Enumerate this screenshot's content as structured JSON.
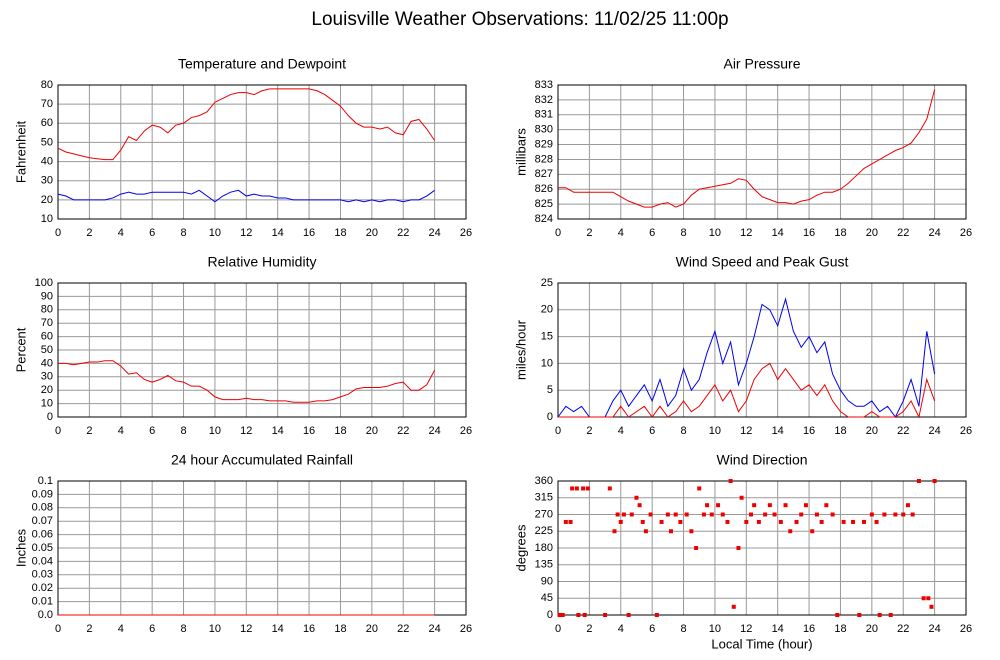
{
  "title": "Louisville Weather Observations: 11/02/25 11:00p",
  "chart_data": [
    {
      "type": "line",
      "title": "Temperature and Dewpoint",
      "ylabel": "Fahrenheit",
      "x": [
        0,
        0.5,
        1,
        1.5,
        2,
        2.5,
        3,
        3.5,
        4,
        4.5,
        5,
        5.5,
        6,
        6.5,
        7,
        7.5,
        8,
        8.5,
        9,
        9.5,
        10,
        10.5,
        11,
        11.5,
        12,
        12.5,
        13,
        13.5,
        14,
        14.5,
        15,
        15.5,
        16,
        16.5,
        17,
        17.5,
        18,
        18.5,
        19,
        19.5,
        20,
        20.5,
        21,
        21.5,
        22,
        22.5,
        23,
        23.5,
        24
      ],
      "series": [
        {
          "color": "#ee0000",
          "values": [
            47,
            45,
            44,
            43,
            42,
            41.5,
            41,
            41,
            46,
            53,
            51,
            56,
            59,
            58,
            55,
            59,
            60,
            63,
            64,
            66,
            71,
            73,
            75,
            76,
            76,
            75,
            77,
            78,
            78,
            78,
            78,
            78,
            78,
            77,
            75,
            72,
            69,
            64,
            60,
            58,
            58,
            57,
            58,
            55,
            54,
            61,
            62,
            57,
            51
          ]
        },
        {
          "color": "#0000ee",
          "values": [
            23,
            22,
            20,
            20,
            20,
            20,
            20,
            21,
            23,
            24,
            23,
            23,
            24,
            24,
            24,
            24,
            24,
            23,
            25,
            22,
            19,
            22,
            24,
            25,
            22,
            23,
            22,
            22,
            21,
            21,
            20,
            20,
            20,
            20,
            20,
            20,
            20,
            19,
            20,
            19,
            20,
            19,
            20,
            20,
            19,
            20,
            20,
            22,
            25
          ]
        }
      ],
      "xlim": [
        0,
        26
      ],
      "xticks": [
        0,
        2,
        4,
        6,
        8,
        10,
        12,
        14,
        16,
        18,
        20,
        22,
        24,
        26
      ],
      "ylim": [
        10,
        80
      ],
      "yticks": [
        10,
        20,
        30,
        40,
        50,
        60,
        70,
        80
      ],
      "grid": true
    },
    {
      "type": "line",
      "title": "Air Pressure",
      "ylabel": "millibars",
      "x": [
        0,
        0.5,
        1,
        1.5,
        2,
        2.5,
        3,
        3.5,
        4,
        4.5,
        5,
        5.5,
        6,
        6.5,
        7,
        7.5,
        8,
        8.5,
        9,
        9.5,
        10,
        10.5,
        11,
        11.5,
        12,
        12.5,
        13,
        13.5,
        14,
        14.5,
        15,
        15.5,
        16,
        16.5,
        17,
        17.5,
        18,
        18.5,
        19,
        19.5,
        20,
        20.5,
        21,
        21.5,
        22,
        22.5,
        23,
        23.5,
        24
      ],
      "series": [
        {
          "color": "#ee0000",
          "values": [
            826.1,
            826.1,
            825.8,
            825.8,
            825.8,
            825.8,
            825.8,
            825.8,
            825.5,
            825.2,
            825.0,
            824.8,
            824.8,
            825.0,
            825.1,
            824.8,
            825.0,
            825.6,
            826.0,
            826.1,
            826.2,
            826.3,
            826.4,
            826.7,
            826.6,
            826.0,
            825.5,
            825.3,
            825.1,
            825.1,
            825.0,
            825.2,
            825.3,
            825.6,
            825.8,
            825.8,
            826.0,
            826.4,
            826.9,
            827.4,
            827.7,
            828.0,
            828.3,
            828.6,
            828.8,
            829.1,
            829.8,
            830.7,
            832.7
          ]
        }
      ],
      "xlim": [
        0,
        26
      ],
      "xticks": [
        0,
        2,
        4,
        6,
        8,
        10,
        12,
        14,
        16,
        18,
        20,
        22,
        24,
        26
      ],
      "ylim": [
        824,
        833
      ],
      "yticks": [
        824,
        825,
        826,
        827,
        828,
        829,
        830,
        831,
        832,
        833
      ],
      "grid": true
    },
    {
      "type": "line",
      "title": "Relative Humidity",
      "ylabel": "Percent",
      "x": [
        0,
        0.5,
        1,
        1.5,
        2,
        2.5,
        3,
        3.5,
        4,
        4.5,
        5,
        5.5,
        6,
        6.5,
        7,
        7.5,
        8,
        8.5,
        9,
        9.5,
        10,
        10.5,
        11,
        11.5,
        12,
        12.5,
        13,
        13.5,
        14,
        14.5,
        15,
        15.5,
        16,
        16.5,
        17,
        17.5,
        18,
        18.5,
        19,
        19.5,
        20,
        20.5,
        21,
        21.5,
        22,
        22.5,
        23,
        23.5,
        24
      ],
      "series": [
        {
          "color": "#ee0000",
          "values": [
            40,
            40,
            39,
            40,
            41,
            41,
            42,
            42,
            38,
            32,
            33,
            28,
            26,
            28,
            31,
            27,
            26,
            23,
            23,
            20,
            15,
            13,
            13,
            13,
            14,
            13,
            13,
            12,
            12,
            12,
            11,
            11,
            11,
            12,
            12,
            13,
            15,
            17,
            21,
            22,
            22,
            22,
            23,
            25,
            26,
            20,
            20,
            24,
            35
          ]
        }
      ],
      "xlim": [
        0,
        26
      ],
      "xticks": [
        0,
        2,
        4,
        6,
        8,
        10,
        12,
        14,
        16,
        18,
        20,
        22,
        24,
        26
      ],
      "ylim": [
        0,
        100
      ],
      "yticks": [
        0,
        10,
        20,
        30,
        40,
        50,
        60,
        70,
        80,
        90,
        100
      ],
      "grid": true
    },
    {
      "type": "line",
      "title": "Wind Speed and Peak Gust",
      "ylabel": "miles/hour",
      "x": [
        0,
        0.5,
        1,
        1.5,
        2,
        2.5,
        3,
        3.5,
        4,
        4.5,
        5,
        5.5,
        6,
        6.5,
        7,
        7.5,
        8,
        8.5,
        9,
        9.5,
        10,
        10.5,
        11,
        11.5,
        12,
        12.5,
        13,
        13.5,
        14,
        14.5,
        15,
        15.5,
        16,
        16.5,
        17,
        17.5,
        18,
        18.5,
        19,
        19.5,
        20,
        20.5,
        21,
        21.5,
        22,
        22.5,
        23,
        23.5,
        24
      ],
      "series": [
        {
          "color": "#0000ee",
          "values": [
            0,
            2,
            1,
            2,
            0,
            0,
            0,
            3,
            5,
            2,
            4,
            6,
            3,
            7,
            2,
            4,
            9,
            5,
            7,
            12,
            16,
            10,
            14,
            6,
            10,
            15,
            21,
            20,
            17,
            22,
            16,
            13,
            15,
            12,
            14,
            8,
            5,
            3,
            2,
            2,
            3,
            1,
            2,
            0,
            3,
            7,
            2,
            16,
            8
          ]
        },
        {
          "color": "#ee0000",
          "values": [
            0,
            0,
            0,
            0,
            0,
            0,
            0,
            0,
            2,
            0,
            1,
            2,
            0,
            2,
            0,
            1,
            3,
            1,
            2,
            4,
            6,
            3,
            5,
            1,
            3,
            7,
            9,
            10,
            7,
            9,
            7,
            5,
            6,
            4,
            6,
            3,
            1,
            0,
            0,
            0,
            1,
            0,
            0,
            0,
            1,
            3,
            0,
            7,
            3
          ]
        }
      ],
      "xlim": [
        0,
        26
      ],
      "xticks": [
        0,
        2,
        4,
        6,
        8,
        10,
        12,
        14,
        16,
        18,
        20,
        22,
        24,
        26
      ],
      "ylim": [
        0,
        25
      ],
      "yticks": [
        0,
        5,
        10,
        15,
        20,
        25
      ],
      "grid": true
    },
    {
      "type": "line",
      "title": "24 hour Accumulated Rainfall",
      "ylabel": "Inches",
      "x": [
        0,
        24
      ],
      "series": [
        {
          "color": "#ee0000",
          "values": [
            0,
            0
          ]
        }
      ],
      "xlim": [
        0,
        26
      ],
      "xticks": [
        0,
        2,
        4,
        6,
        8,
        10,
        12,
        14,
        16,
        18,
        20,
        22,
        24,
        26
      ],
      "ylim": [
        0,
        0.1
      ],
      "yticks": [
        {
          "value": 0,
          "label": "0.0"
        },
        0.01,
        0.02,
        0.03,
        0.04,
        0.05,
        0.06,
        0.07,
        0.08,
        0.09,
        0.1
      ],
      "grid": true
    },
    {
      "type": "scatter",
      "title": "Wind Direction",
      "ylabel": "degrees",
      "xlabel": "Local Time (hour)",
      "x": [
        0.1,
        0.3,
        0.5,
        0.8,
        0.9,
        1.2,
        1.6,
        1.9,
        1.3,
        1.7,
        3.0,
        3.3,
        3.6,
        3.8,
        4.0,
        4.2,
        4.5,
        4.7,
        5.0,
        5.2,
        5.4,
        5.6,
        5.9,
        6.3,
        6.6,
        7.0,
        7.2,
        7.5,
        7.8,
        8.2,
        8.5,
        8.8,
        9.0,
        9.3,
        9.5,
        9.8,
        10.2,
        10.5,
        10.8,
        11.0,
        11.2,
        11.5,
        11.7,
        12.0,
        12.3,
        12.5,
        12.8,
        13.2,
        13.5,
        13.8,
        14.2,
        14.5,
        14.8,
        15.2,
        15.5,
        15.8,
        16.2,
        16.5,
        16.8,
        17.1,
        17.5,
        17.8,
        18.2,
        18.8,
        19.2,
        19.5,
        20.0,
        20.3,
        20.5,
        20.8,
        21.2,
        21.5,
        22.0,
        22.3,
        22.6,
        23.0,
        23.3,
        23.6,
        23.8,
        24.0
      ],
      "series": [
        {
          "color": "#ee0000",
          "values": [
            0,
            0,
            250,
            250,
            340,
            340,
            340,
            340,
            0,
            0,
            0,
            340,
            225,
            270,
            250,
            270,
            0,
            270,
            315,
            295,
            250,
            225,
            270,
            0,
            250,
            270,
            225,
            270,
            250,
            270,
            225,
            180,
            340,
            270,
            295,
            270,
            295,
            270,
            250,
            360,
            22,
            180,
            315,
            250,
            270,
            295,
            250,
            270,
            295,
            270,
            250,
            295,
            225,
            250,
            270,
            295,
            225,
            270,
            250,
            295,
            270,
            0,
            250,
            250,
            0,
            250,
            270,
            250,
            0,
            270,
            0,
            270,
            270,
            295,
            270,
            360,
            45,
            45,
            22,
            360
          ]
        }
      ],
      "xlim": [
        0,
        26
      ],
      "xticks": [
        0,
        2,
        4,
        6,
        8,
        10,
        12,
        14,
        16,
        18,
        20,
        22,
        24,
        26
      ],
      "ylim": [
        0,
        360
      ],
      "yticks": [
        0,
        45,
        90,
        135,
        180,
        225,
        270,
        315,
        360
      ],
      "grid": true
    }
  ]
}
